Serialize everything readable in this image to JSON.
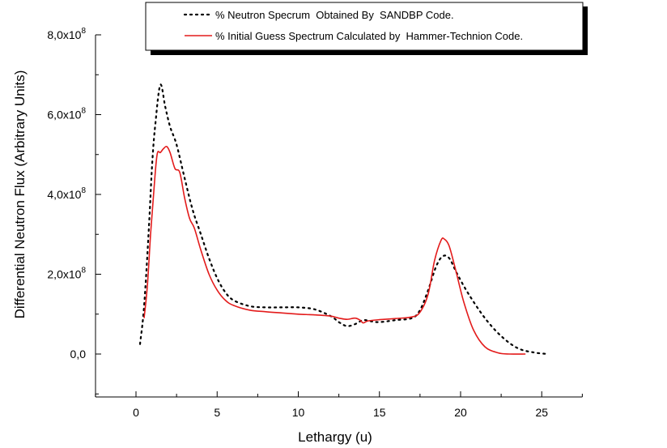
{
  "chart_data": {
    "type": "line",
    "xlabel": "Lethargy (u)",
    "ylabel": "Differential Neutron Flux (Arbitrary Units)",
    "xlim": [
      -2.5,
      27.5
    ],
    "ylim": [
      -110000000.0,
      800000000.0
    ],
    "x_ticks": [
      0,
      5,
      10,
      15,
      20,
      25
    ],
    "y_ticks": [
      {
        "value": 0,
        "label": "0,0",
        "exp": ""
      },
      {
        "value": 200000000.0,
        "label": "2,0x10",
        "exp": "8"
      },
      {
        "value": 400000000.0,
        "label": "4,0x10",
        "exp": "8"
      },
      {
        "value": 600000000.0,
        "label": "6,0x10",
        "exp": "8"
      },
      {
        "value": 800000000.0,
        "label": "8,0x10",
        "exp": "8"
      }
    ],
    "legend_position": "top-right",
    "series": [
      {
        "name": "% Neutron Specrum  Obtained By  SANDBP Code.",
        "color": "#000000",
        "style": "dotted",
        "x": [
          0.25,
          0.5,
          0.8,
          1.0,
          1.2,
          1.5,
          1.8,
          2.1,
          2.5,
          3.0,
          3.5,
          4.0,
          4.5,
          5.0,
          5.5,
          6.0,
          7.0,
          8.0,
          9.0,
          10.0,
          11.0,
          12.0,
          12.5,
          13.0,
          13.5,
          14.0,
          14.5,
          15.0,
          16.0,
          17.0,
          17.5,
          18.0,
          18.5,
          18.9,
          19.3,
          19.8,
          20.5,
          21.5,
          22.5,
          23.5,
          24.5,
          25.4
        ],
        "y": [
          25000000.0,
          120000000.0,
          320000000.0,
          480000000.0,
          580000000.0,
          675000000.0,
          620000000.0,
          570000000.0,
          525000000.0,
          440000000.0,
          360000000.0,
          300000000.0,
          240000000.0,
          190000000.0,
          155000000.0,
          135000000.0,
          120000000.0,
          117000000.0,
          117000000.0,
          117000000.0,
          112000000.0,
          95000000.0,
          80000000.0,
          70000000.0,
          75000000.0,
          85000000.0,
          82000000.0,
          80000000.0,
          85000000.0,
          90000000.0,
          110000000.0,
          160000000.0,
          220000000.0,
          245000000.0,
          240000000.0,
          200000000.0,
          150000000.0,
          90000000.0,
          45000000.0,
          15000000.0,
          4000000.0,
          0.0
        ]
      },
      {
        "name": "% Initial Guess Spectrum Calculated by  Hammer-Technion Code.",
        "color": "#e31b1b",
        "style": "solid",
        "x": [
          0.5,
          0.7,
          0.9,
          1.1,
          1.3,
          1.5,
          1.7,
          1.9,
          2.1,
          2.4,
          2.7,
          3.0,
          3.3,
          3.6,
          4.0,
          4.5,
          5.0,
          5.5,
          6.0,
          7.0,
          8.0,
          9.0,
          10.0,
          11.0,
          12.0,
          12.5,
          13.0,
          13.5,
          13.8,
          14.0,
          14.3,
          15.0,
          16.0,
          17.0,
          17.5,
          18.0,
          18.4,
          18.8,
          19.0,
          19.3,
          19.7,
          20.2,
          20.8,
          21.5,
          22.3,
          23.0,
          24.0
        ],
        "y": [
          90000000.0,
          170000000.0,
          300000000.0,
          410000000.0,
          500000000.0,
          505000000.0,
          515000000.0,
          520000000.0,
          505000000.0,
          465000000.0,
          455000000.0,
          390000000.0,
          340000000.0,
          315000000.0,
          260000000.0,
          200000000.0,
          160000000.0,
          135000000.0,
          122000000.0,
          110000000.0,
          106000000.0,
          103000000.0,
          100000000.0,
          98000000.0,
          95000000.0,
          90000000.0,
          87000000.0,
          90000000.0,
          85000000.0,
          78000000.0,
          83000000.0,
          86000000.0,
          89000000.0,
          93000000.0,
          105000000.0,
          150000000.0,
          235000000.0,
          285000000.0,
          288000000.0,
          270000000.0,
          210000000.0,
          130000000.0,
          60000000.0,
          18000000.0,
          3000000.0,
          0.0,
          0.0
        ]
      }
    ]
  }
}
